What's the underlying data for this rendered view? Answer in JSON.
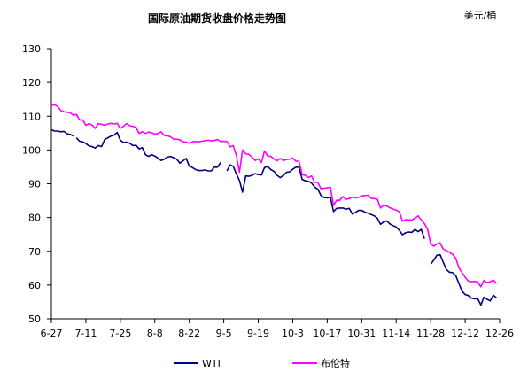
{
  "chart_data": {
    "type": "line",
    "title": "国际原油期货收盘价格走势图",
    "unit_label": "美元/桶",
    "xlabel": "",
    "ylabel": "",
    "ylim": [
      50,
      130
    ],
    "yticks": [
      50,
      60,
      70,
      80,
      90,
      100,
      110,
      120,
      130
    ],
    "grid": false,
    "legend_position": "bottom",
    "x_ticks": [
      "6-27",
      "7-11",
      "7-25",
      "8-8",
      "8-22",
      "9-5",
      "9-19",
      "10-3",
      "10-17",
      "10-31",
      "11-14",
      "11-28",
      "12-12",
      "12-26"
    ],
    "series": [
      {
        "name": "WTI",
        "color": "#000080",
        "points": [
          [
            0,
            106
          ],
          [
            1,
            105.6
          ],
          [
            2,
            105.6
          ],
          [
            3,
            105.4
          ],
          [
            4,
            105.5
          ],
          [
            5,
            104.8
          ],
          [
            6,
            104.6
          ],
          [
            7,
            104.1
          ],
          [
            null,
            null
          ],
          [
            8,
            103.6
          ],
          [
            9,
            102.6
          ],
          [
            10,
            102.4
          ],
          [
            11,
            101.9
          ],
          [
            12,
            101.2
          ],
          [
            13,
            101
          ],
          [
            14,
            100.6
          ],
          [
            15,
            101.3
          ],
          [
            16,
            101
          ],
          [
            17,
            103.1
          ],
          [
            18,
            103.6
          ],
          [
            19,
            104.1
          ],
          [
            20,
            104.4
          ],
          [
            21,
            105.2
          ],
          [
            22,
            102.9
          ],
          [
            23,
            102.2
          ],
          [
            24,
            102.3
          ],
          [
            25,
            102
          ],
          [
            26,
            101.3
          ],
          [
            27,
            101.4
          ],
          [
            28,
            100.3
          ],
          [
            29,
            100.7
          ],
          [
            30,
            98.6
          ],
          [
            31,
            98.1
          ],
          [
            32,
            98.6
          ],
          [
            33,
            98.2
          ],
          [
            34,
            97.6
          ],
          [
            35,
            96.9
          ],
          [
            36,
            97.3
          ],
          [
            37,
            97.9
          ],
          [
            38,
            98.1
          ],
          [
            39,
            97.7
          ],
          [
            40,
            97.3
          ],
          [
            41,
            96.1
          ],
          [
            42,
            96.8
          ],
          [
            43,
            97.5
          ],
          [
            44,
            95.2
          ],
          [
            45,
            94.8
          ],
          [
            46,
            94.2
          ],
          [
            47,
            93.9
          ],
          [
            48,
            93.9
          ],
          [
            49,
            94.1
          ],
          [
            50,
            93.8
          ],
          [
            51,
            93.8
          ],
          [
            52,
            94.9
          ],
          [
            53,
            94.9
          ],
          [
            54,
            96.3
          ],
          [
            null,
            null
          ],
          [
            56,
            93.8
          ],
          [
            57,
            95.6
          ],
          [
            58,
            95.2
          ],
          [
            59,
            92.9
          ],
          [
            60,
            91
          ],
          [
            61,
            87.5
          ],
          [
            62,
            92.3
          ],
          [
            63,
            92.2
          ],
          [
            64,
            92.5
          ],
          [
            65,
            93
          ],
          [
            66,
            92.7
          ],
          [
            67,
            92.6
          ],
          [
            68,
            94.8
          ],
          [
            69,
            95.1
          ],
          [
            70,
            94.2
          ],
          [
            71,
            93.7
          ],
          [
            72,
            92.5
          ],
          [
            73,
            91.8
          ],
          [
            74,
            92.4
          ],
          [
            75,
            93.4
          ],
          [
            76,
            93.5
          ],
          [
            77,
            94.3
          ],
          [
            78,
            94.9
          ],
          [
            79,
            94.9
          ],
          [
            80,
            91.3
          ],
          [
            81,
            90.9
          ],
          [
            82,
            90.7
          ],
          [
            83,
            90.2
          ],
          [
            84,
            89
          ],
          [
            85,
            88.4
          ],
          [
            86,
            86.5
          ],
          [
            87,
            85.9
          ],
          [
            88,
            85.8
          ],
          [
            89,
            86
          ],
          [
            90,
            81.8
          ],
          [
            91,
            82.7
          ],
          [
            92,
            82.8
          ],
          [
            93,
            82.8
          ],
          [
            94,
            82.5
          ],
          [
            95,
            82.7
          ],
          [
            96,
            81
          ],
          [
            97,
            81.5
          ],
          [
            98,
            82.1
          ],
          [
            99,
            82.1
          ],
          [
            100,
            81.6
          ],
          [
            101,
            81.3
          ],
          [
            102,
            80.9
          ],
          [
            103,
            80.5
          ],
          [
            104,
            79.8
          ],
          [
            105,
            78
          ],
          [
            106,
            78.7
          ],
          [
            107,
            79
          ],
          [
            108,
            78.1
          ],
          [
            109,
            77.6
          ],
          [
            110,
            77.2
          ],
          [
            111,
            76.2
          ],
          [
            112,
            74.9
          ],
          [
            113,
            75.5
          ],
          [
            114,
            75.7
          ],
          [
            115,
            75.6
          ],
          [
            116,
            76.5
          ],
          [
            117,
            75.8
          ],
          [
            118,
            76.5
          ],
          [
            119,
            73.7
          ],
          [
            null,
            null
          ],
          [
            121,
            66.2
          ],
          [
            122,
            67.4
          ],
          [
            123,
            68.8
          ],
          [
            124,
            69
          ],
          [
            125,
            66.8
          ],
          [
            126,
            64.6
          ],
          [
            127,
            63.8
          ],
          [
            128,
            63.7
          ],
          [
            129,
            62.8
          ],
          [
            130,
            60.5
          ],
          [
            131,
            58.2
          ],
          [
            132,
            57.2
          ],
          [
            133,
            56.9
          ],
          [
            134,
            56.1
          ],
          [
            135,
            55.9
          ],
          [
            136,
            56
          ],
          [
            137,
            54.1
          ],
          [
            138,
            56.4
          ],
          [
            139,
            55.8
          ],
          [
            140,
            55.3
          ],
          [
            141,
            57
          ],
          [
            142,
            56.2
          ]
        ]
      },
      {
        "name": "布伦特",
        "color": "#ff00ff",
        "points": [
          [
            0,
            113.2
          ],
          [
            1,
            113.4
          ],
          [
            2,
            112.9
          ],
          [
            3,
            111.7
          ],
          [
            4,
            111.3
          ],
          [
            5,
            111.2
          ],
          [
            6,
            111
          ],
          [
            7,
            110.3
          ],
          [
            8,
            110.5
          ],
          [
            9,
            108.9
          ],
          [
            10,
            108.9
          ],
          [
            11,
            107.3
          ],
          [
            12,
            107.8
          ],
          [
            13,
            107.4
          ],
          [
            14,
            106.4
          ],
          [
            15,
            107.8
          ],
          [
            16,
            107.6
          ],
          [
            17,
            107.3
          ],
          [
            18,
            107.7
          ],
          [
            19,
            107.9
          ],
          [
            20,
            107.7
          ],
          [
            21,
            107.9
          ],
          [
            22,
            106.4
          ],
          [
            23,
            107
          ],
          [
            24,
            107.8
          ],
          [
            25,
            107.2
          ],
          [
            26,
            107
          ],
          [
            27,
            106.7
          ],
          [
            28,
            104.9
          ],
          [
            29,
            105.4
          ],
          [
            30,
            104.9
          ],
          [
            31,
            105.3
          ],
          [
            32,
            105.1
          ],
          [
            33,
            104.7
          ],
          [
            34,
            104.9
          ],
          [
            35,
            105.4
          ],
          [
            36,
            104.3
          ],
          [
            37,
            104.2
          ],
          [
            38,
            103.9
          ],
          [
            39,
            103.2
          ],
          [
            40,
            103.2
          ],
          [
            41,
            103
          ],
          [
            42,
            102.4
          ],
          [
            43,
            102.3
          ],
          [
            44,
            102
          ],
          [
            45,
            102.4
          ],
          [
            46,
            102.5
          ],
          [
            47,
            102.4
          ],
          [
            48,
            102.6
          ],
          [
            49,
            102.7
          ],
          [
            50,
            102.9
          ],
          [
            51,
            102.7
          ],
          [
            52,
            102.8
          ],
          [
            53,
            103.1
          ],
          [
            54,
            102.5
          ],
          [
            55,
            102.6
          ],
          [
            56,
            102.5
          ],
          [
            57,
            100.9
          ],
          [
            58,
            101.3
          ],
          [
            59,
            98.4
          ],
          [
            60,
            93.4
          ],
          [
            61,
            100
          ],
          [
            62,
            98.9
          ],
          [
            63,
            98.7
          ],
          [
            64,
            97.9
          ],
          [
            65,
            96.9
          ],
          [
            66,
            97.4
          ],
          [
            67,
            96.3
          ],
          [
            68,
            99.7
          ],
          [
            69,
            98.2
          ],
          [
            70,
            98.1
          ],
          [
            71,
            97.4
          ],
          [
            72,
            96.8
          ],
          [
            73,
            97.5
          ],
          [
            74,
            96.9
          ],
          [
            75,
            97.2
          ],
          [
            76,
            97.3
          ],
          [
            77,
            97.6
          ],
          [
            78,
            96.7
          ],
          [
            79,
            96.7
          ],
          [
            80,
            92.7
          ],
          [
            81,
            92.5
          ],
          [
            82,
            91.8
          ],
          [
            83,
            92.3
          ],
          [
            84,
            90.4
          ],
          [
            85,
            90.4
          ],
          [
            86,
            88.5
          ],
          [
            87,
            88.7
          ],
          [
            88,
            88.8
          ],
          [
            89,
            89
          ],
          [
            90,
            83.6
          ],
          [
            91,
            85.1
          ],
          [
            92,
            85.1
          ],
          [
            93,
            86.2
          ],
          [
            94,
            85.4
          ],
          [
            95,
            85.6
          ],
          [
            96,
            86.1
          ],
          [
            97,
            85.8
          ],
          [
            98,
            86
          ],
          [
            99,
            86.4
          ],
          [
            100,
            86.5
          ],
          [
            101,
            86.6
          ],
          [
            102,
            85.7
          ],
          [
            103,
            85.6
          ],
          [
            104,
            85.4
          ],
          [
            105,
            82.8
          ],
          [
            106,
            83.7
          ],
          [
            107,
            83.4
          ],
          [
            108,
            82.9
          ],
          [
            109,
            82.5
          ],
          [
            110,
            82.2
          ],
          [
            111,
            81.7
          ],
          [
            112,
            78.9
          ],
          [
            113,
            79.4
          ],
          [
            114,
            79.3
          ],
          [
            115,
            79.3
          ],
          [
            116,
            79.8
          ],
          [
            117,
            80.5
          ],
          [
            118,
            79.3
          ],
          [
            119,
            78.2
          ],
          [
            120,
            76.6
          ],
          [
            121,
            72.2
          ],
          [
            122,
            71.5
          ],
          [
            123,
            72.2
          ],
          [
            124,
            72.5
          ],
          [
            125,
            70.7
          ],
          [
            126,
            70.2
          ],
          [
            127,
            69.7
          ],
          [
            128,
            69.1
          ],
          [
            129,
            67.9
          ],
          [
            130,
            65.2
          ],
          [
            131,
            63.7
          ],
          [
            132,
            62.3
          ],
          [
            133,
            61.2
          ],
          [
            134,
            61
          ],
          [
            135,
            61.1
          ],
          [
            136,
            60.9
          ],
          [
            137,
            59.5
          ],
          [
            138,
            61.4
          ],
          [
            139,
            60.7
          ],
          [
            140,
            61
          ],
          [
            141,
            61.5
          ],
          [
            142,
            60.4
          ]
        ]
      }
    ]
  }
}
